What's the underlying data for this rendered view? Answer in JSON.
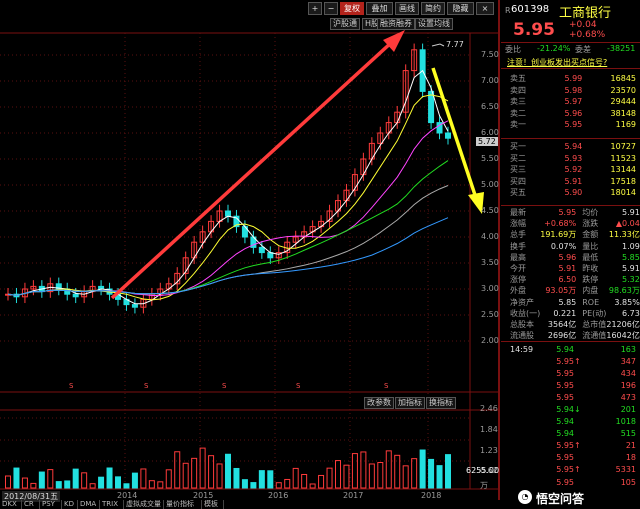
{
  "toolbar": {
    "plus": "+",
    "minus": "−",
    "fq": "复权",
    "overlay": "叠加",
    "draw": "画线",
    "brief": "简约",
    "hide": "隐藏",
    "close": "×"
  },
  "tags": {
    "hgt": "沪股通",
    "hh": "H股",
    "rzrq": "融资融券",
    "setma": "设置均线"
  },
  "price_axis": [
    "7.50",
    "7.00",
    "6.50",
    "6.00",
    "5.50",
    "5.00",
    "4.50",
    "4.00",
    "3.50",
    "3.00",
    "2.50",
    "2.00"
  ],
  "price_marker": "5.72",
  "peak_label": "7.77",
  "s_labels": [
    "S",
    "S",
    "S",
    "S",
    "S"
  ],
  "x_labels": [
    "2014",
    "2015",
    "2016",
    "2017",
    "2018"
  ],
  "date_label": "2012/08/31五",
  "vol_buttons": {
    "params": "改参数",
    "add": "加指标",
    "switch": "换指标"
  },
  "vol_axis": [
    "2.46",
    "1.84",
    "1.23",
    "0.62"
  ],
  "vol_marker": "6255.00",
  "vol_unit": "万",
  "bottom_tabs": [
    "DKX",
    "CR",
    "PSY",
    "KD",
    "DMA",
    "TRIX",
    "虚拟成交量",
    "量价指标",
    "模板"
  ],
  "header": {
    "code_prefix": "R",
    "code": "601398",
    "name": "工商银行",
    "price": "5.95",
    "chg": "+0.04",
    "pct": "+0.68%"
  },
  "webi": {
    "l1": "委比",
    "v1": "-21.24%",
    "l2": "委差",
    "v2": "-38251"
  },
  "notice": "注意！创业板发出买点信号?",
  "asks": [
    [
      "卖五",
      "5.99",
      "16845"
    ],
    [
      "卖四",
      "5.98",
      "23570"
    ],
    [
      "卖三",
      "5.97",
      "29444"
    ],
    [
      "卖二",
      "5.96",
      "38148"
    ],
    [
      "卖一",
      "5.95",
      "1169"
    ]
  ],
  "bids": [
    [
      "买一",
      "5.94",
      "10727"
    ],
    [
      "买二",
      "5.93",
      "11523"
    ],
    [
      "买三",
      "5.92",
      "13144"
    ],
    [
      "买四",
      "5.91",
      "17518"
    ],
    [
      "买五",
      "5.90",
      "18014"
    ]
  ],
  "stats": [
    [
      "最新",
      "5.95",
      "均价",
      "5.91"
    ],
    [
      "涨幅",
      "+0.68%",
      "涨跌",
      "▲0.04"
    ],
    [
      "总手",
      "191.69万",
      "金额",
      "11.33亿"
    ],
    [
      "换手",
      "0.07%",
      "量比",
      "1.09"
    ],
    [
      "最高",
      "5.96",
      "最低",
      "5.85"
    ],
    [
      "今开",
      "5.91",
      "昨收",
      "5.91"
    ],
    [
      "涨停",
      "6.50",
      "跌停",
      "5.32"
    ],
    [
      "外盘",
      "93.05万",
      "内盘",
      "98.63万"
    ],
    [
      "净资产",
      "5.85",
      "ROE",
      "3.85%"
    ],
    [
      "收益(一)",
      "0.221",
      "PE(动)",
      "6.73"
    ],
    [
      "总股本",
      "3564亿",
      "总市值",
      "21206亿"
    ],
    [
      "流通股",
      "2696亿",
      "流通值",
      "16042亿"
    ]
  ],
  "ticks": [
    [
      "14:59",
      "5.94",
      "",
      "163"
    ],
    [
      "",
      "5.95",
      "↑",
      "347"
    ],
    [
      "",
      "5.95",
      "",
      "434"
    ],
    [
      "",
      "5.95",
      "",
      "196"
    ],
    [
      "",
      "5.95",
      "",
      "473"
    ],
    [
      "",
      "5.94",
      "↓",
      "201"
    ],
    [
      "",
      "5.94",
      "",
      "1018"
    ],
    [
      "",
      "5.94",
      "",
      "515"
    ],
    [
      "",
      "5.95",
      "↑",
      "21"
    ],
    [
      "",
      "5.95",
      "",
      "18"
    ],
    [
      "",
      "5.95",
      "↑",
      "5331"
    ],
    [
      "",
      "5.95",
      "",
      "105"
    ]
  ],
  "watermark": "悟空问答"
}
